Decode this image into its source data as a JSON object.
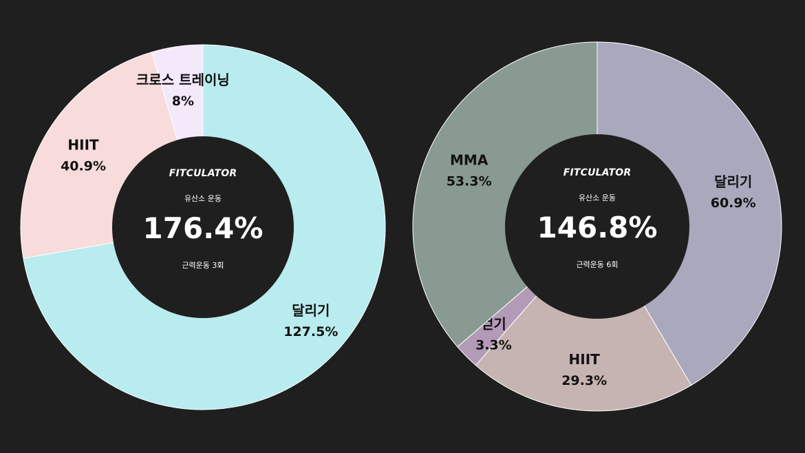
{
  "chart_data": [
    {
      "type": "donut",
      "brand": "FITCULATOR",
      "center_subtitle": "유산소 운동",
      "center_total": "176.4%",
      "center_footer": "근력운동 3회",
      "slices": [
        {
          "name": "달리기",
          "label": "127.5%",
          "value": 127.5,
          "color": "#b8ecef"
        },
        {
          "name": "HIIT",
          "label": "40.9%",
          "value": 40.9,
          "color": "#f7dcdb"
        },
        {
          "name": "크로스 트레이닝",
          "label": "8%",
          "value": 8,
          "color": "#f4e8fb"
        }
      ]
    },
    {
      "type": "donut",
      "brand": "FITCULATOR",
      "center_subtitle": "유산소 운동",
      "center_total": "146.8%",
      "center_footer": "근력운동 6회",
      "slices": [
        {
          "name": "달리기",
          "label": "60.9%",
          "value": 60.9,
          "color": "#a9a8bc"
        },
        {
          "name": "HIIT",
          "label": "29.3%",
          "value": 29.3,
          "color": "#c6b4b3"
        },
        {
          "name": "걷기",
          "label": "3.3%",
          "value": 3.3,
          "color": "#b39ab7"
        },
        {
          "name": "MMA",
          "label": "53.3%",
          "value": 53.3,
          "color": "#889a92"
        }
      ]
    }
  ]
}
